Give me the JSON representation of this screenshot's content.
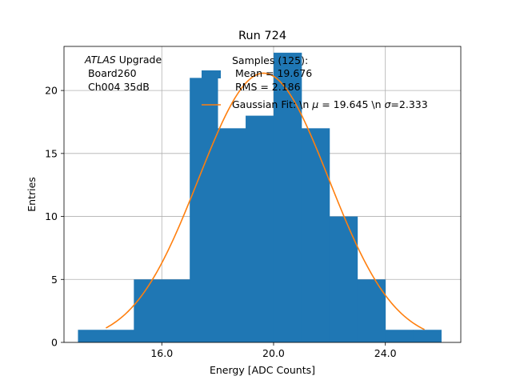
{
  "chart_data": {
    "type": "bar",
    "title": "Run 724",
    "xlabel": "Energy [ADC Counts]",
    "ylabel": "Entries",
    "xlim": [
      12.5,
      26.7
    ],
    "ylim": [
      0,
      23.5
    ],
    "grid": true,
    "x_ticks": [
      16.0,
      20.0,
      24.0
    ],
    "x_tick_labels": [
      "16.0",
      "20.0",
      "24.0"
    ],
    "y_ticks": [
      0,
      5,
      10,
      15,
      20
    ],
    "y_tick_labels": [
      "0",
      "5",
      "10",
      "15",
      "20"
    ],
    "histogram": {
      "bin_edges": [
        13,
        14,
        15,
        16,
        17,
        18,
        19,
        20,
        21,
        22,
        23,
        24,
        25,
        26
      ],
      "counts": [
        1,
        1,
        5,
        5,
        21,
        17,
        18,
        23,
        17,
        10,
        5,
        1,
        1
      ],
      "color": "#1f77b4"
    },
    "gaussian_fit": {
      "mu": 19.645,
      "sigma": 2.333,
      "x_range": [
        14.0,
        25.4
      ],
      "color": "#ff7f0e"
    },
    "annotation": {
      "line1_italic": "ATLAS",
      "line1_rest": " Upgrade",
      "line2": " Board260",
      "line3": " Ch004 35dB"
    },
    "legend": {
      "placement": "upper-center",
      "hist_title": "Samples (125):",
      "hist_mean": " Mean = 19.676",
      "hist_rms": " RMS = 2.186",
      "fit_prefix": "Gaussian Fit: \\n ",
      "fit_mu_symbol": "μ",
      "fit_mu_text": " = 19.645 \\n ",
      "fit_sigma_symbol": "σ",
      "fit_sigma_text": "=2.333"
    }
  }
}
